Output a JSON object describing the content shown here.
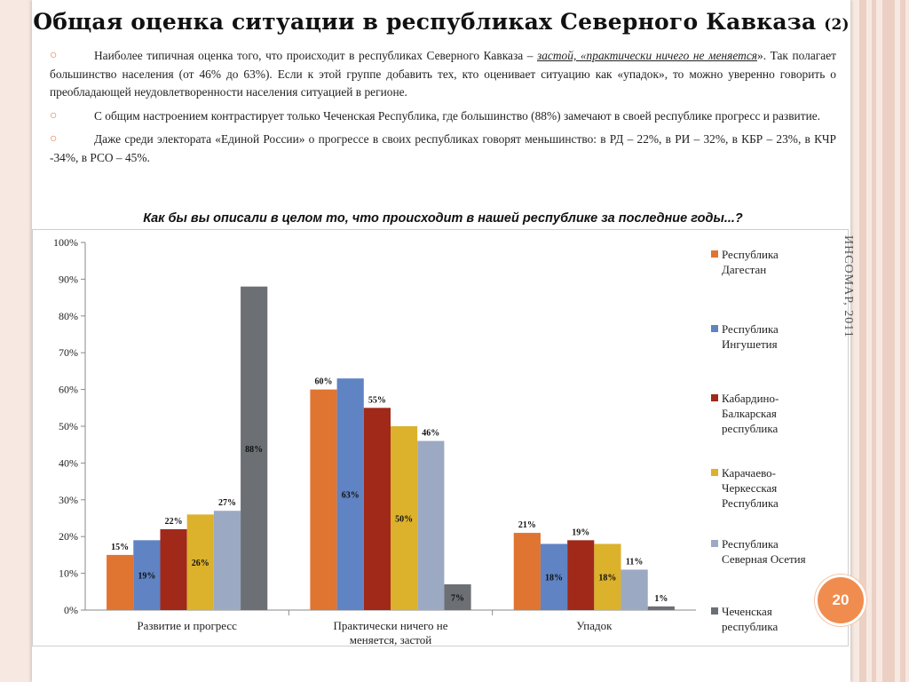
{
  "title": {
    "main": "Общая оценка ситуации  в республиках Северного Кавказа",
    "suffix": "(2)"
  },
  "bullets": [
    {
      "marker": "○",
      "before": "Наиболее типичная оценка того, что происходит в республиках Северного Кавказа – ",
      "emph": "застой, «практически ничего не меняется",
      "after": "». Так полагает большинство населения (от 46% до 63%). Если к этой группе добавить тех, кто оценивает ситуацию как «упадок», то можно уверенно говорить о преобладающей неудовлетворенности населения ситуацией в регионе."
    },
    {
      "marker": "○",
      "before": "С общим настроением контрастирует только Чеченская Республика, где большинство (88%) замечают в своей республике прогресс и развитие.",
      "emph": "",
      "after": ""
    },
    {
      "marker": "○",
      "before": "Даже среди электората «Единой России» о прогрессе  в своих республиках говорят меньшинство: в РД – 22%, в РИ – 32%, в КБР – 23%, в КЧР -34%, в РСО – 45%.",
      "emph": "",
      "after": ""
    }
  ],
  "question": "Как бы вы описали в целом то, что происходит в нашей республике за последние годы...?",
  "side_label": "ИНСОМАР, 2011",
  "page_number": "20",
  "colors": {
    "accent": "#f08c4e",
    "marker": "#e07a54"
  },
  "chart_data": {
    "type": "bar",
    "categories": [
      "Развитие и прогресс",
      "Практически ничего не меняется, застой",
      "Упадок"
    ],
    "category_lines": [
      [
        "Развитие и прогресс"
      ],
      [
        "Практически ничего не",
        "меняется, застой"
      ],
      [
        "Упадок"
      ]
    ],
    "series": [
      {
        "name": "Республика Дагестан",
        "legend_lines": [
          "Республика",
          "Дагестан"
        ],
        "color": "#e07431",
        "values": [
          15,
          60,
          21
        ]
      },
      {
        "name": "Республика Ингушетия",
        "legend_lines": [
          "Республика",
          "Ингушетия"
        ],
        "color": "#5f83c3",
        "values": [
          19,
          63,
          18
        ]
      },
      {
        "name": "Кабардино-Балкарская республика",
        "legend_lines": [
          "Кабардино-",
          "Балкарская",
          "республика"
        ],
        "color": "#a0291a",
        "values": [
          22,
          55,
          19
        ]
      },
      {
        "name": "Карачаево-Черкесская Республика",
        "legend_lines": [
          "Карачаево-",
          "Черкесская",
          "Республика"
        ],
        "color": "#dcb12c",
        "values": [
          26,
          50,
          18
        ]
      },
      {
        "name": "Республика Северная Осетия",
        "legend_lines": [
          "Республика",
          "Северная Осетия"
        ],
        "color": "#9ca9c2",
        "values": [
          27,
          46,
          11
        ]
      },
      {
        "name": "Чеченская республика",
        "legend_lines": [
          "Чеченская",
          "республика"
        ],
        "color": "#6c6f74",
        "values": [
          88,
          7,
          1
        ]
      }
    ],
    "labels": [
      [
        "15%",
        "19%",
        "22%",
        "26%",
        "27%",
        "88%"
      ],
      [
        "60%",
        "63%",
        "55%",
        "50%",
        "46%",
        "7%"
      ],
      [
        "21%",
        "18%",
        "19%",
        "18%",
        "11%",
        "1%"
      ]
    ],
    "label_inside": [
      [
        false,
        true,
        false,
        true,
        false,
        true
      ],
      [
        false,
        true,
        false,
        true,
        false,
        true
      ],
      [
        false,
        true,
        false,
        true,
        false,
        false
      ]
    ],
    "yticks": [
      "0%",
      "10%",
      "20%",
      "30%",
      "40%",
      "50%",
      "60%",
      "70%",
      "80%",
      "90%",
      "100%"
    ],
    "ylim": [
      0,
      100
    ],
    "grid": false,
    "legend_position": "right"
  }
}
